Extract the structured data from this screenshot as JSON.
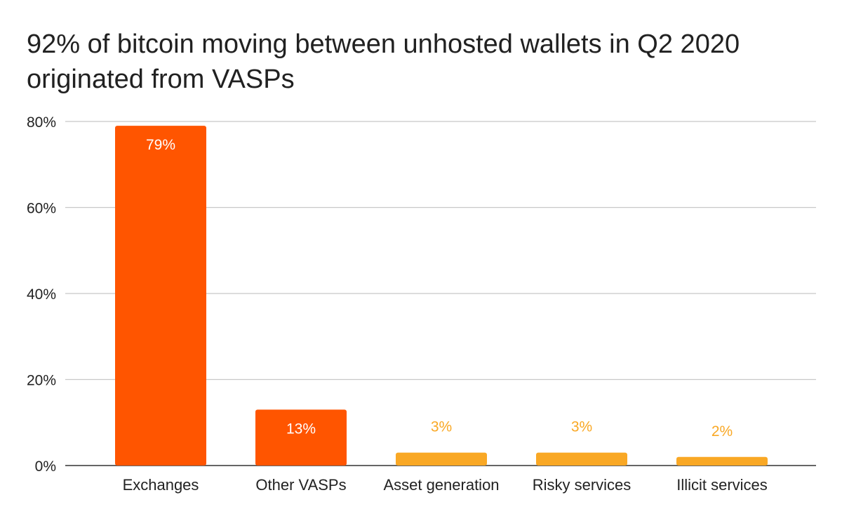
{
  "chart_data": {
    "type": "bar",
    "title": "92% of bitcoin moving between unhosted wallets in Q2 2020 originated from VASPs",
    "xlabel": "",
    "ylabel": "",
    "categories": [
      "Exchanges",
      "Other VASPs",
      "Asset generation",
      "Risky services",
      "Illicit services"
    ],
    "values": [
      79,
      13,
      3,
      3,
      2
    ],
    "data_labels": [
      "79%",
      "13%",
      "3%",
      "3%",
      "2%"
    ],
    "bar_colors": [
      "#ff5500",
      "#ff5500",
      "#f9a825",
      "#f9a825",
      "#f9a825"
    ],
    "label_colors": [
      "#ffffff",
      "#ffffff",
      "#f9a825",
      "#f9a825",
      "#f9a825"
    ],
    "ylim": [
      0,
      80
    ],
    "y_ticks": [
      0,
      20,
      40,
      60,
      80
    ],
    "y_tick_labels": [
      "0%",
      "20%",
      "40%",
      "60%",
      "80%"
    ],
    "grid": true,
    "legend": "none"
  }
}
